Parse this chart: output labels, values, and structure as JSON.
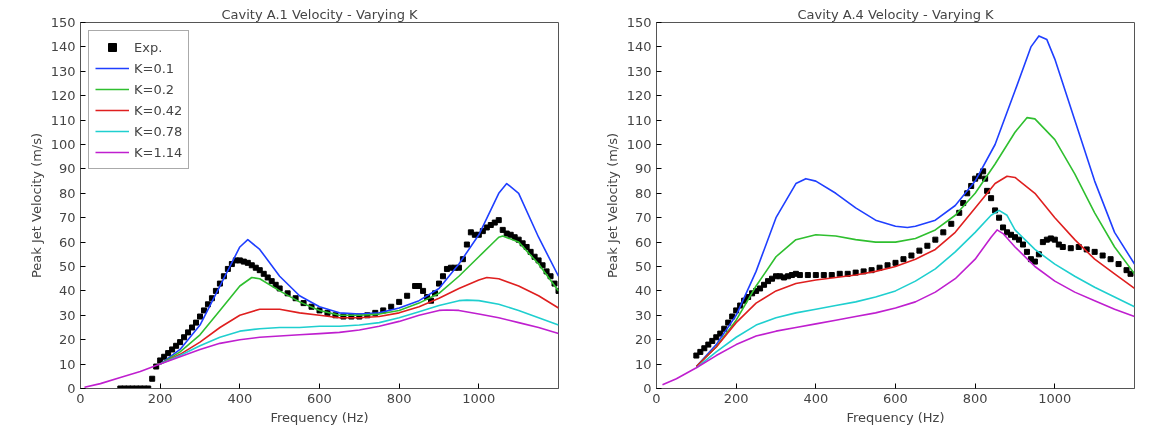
{
  "chart_data": [
    {
      "type": "line",
      "title": "Cavity A.1 Velocity - Varying K",
      "xlabel": "Frequency (Hz)",
      "ylabel": "Peak Jet Velocity (m/s)",
      "xlim": [
        0,
        1200
      ],
      "xticks": [
        0,
        200,
        400,
        600,
        800,
        1000
      ],
      "ylim": [
        0,
        150
      ],
      "yticks": [
        0,
        10,
        20,
        30,
        40,
        50,
        60,
        70,
        80,
        90,
        100,
        110,
        120,
        130,
        140,
        150
      ],
      "grid": false,
      "legend": "top left",
      "line_style": "solid",
      "series": [
        {
          "name": "Exp.",
          "type": "scatter",
          "marker": "square",
          "color": "#000000",
          "x": [
            100,
            110,
            120,
            130,
            140,
            150,
            160,
            170,
            180,
            190,
            200,
            210,
            220,
            230,
            240,
            250,
            260,
            270,
            280,
            290,
            300,
            310,
            320,
            330,
            340,
            350,
            360,
            370,
            380,
            390,
            400,
            410,
            420,
            430,
            440,
            450,
            460,
            470,
            480,
            490,
            500,
            520,
            540,
            560,
            580,
            600,
            620,
            640,
            660,
            680,
            700,
            720,
            740,
            760,
            780,
            800,
            820,
            840,
            850,
            860,
            870,
            880,
            890,
            900,
            910,
            920,
            930,
            940,
            950,
            960,
            970,
            980,
            990,
            1000,
            1010,
            1020,
            1030,
            1040,
            1050,
            1060,
            1070,
            1080,
            1090,
            1100,
            1110,
            1120,
            1130,
            1140,
            1150,
            1160,
            1170,
            1180,
            1190,
            1200
          ],
          "values": [
            0,
            0,
            0,
            0,
            0,
            0,
            0,
            0,
            4,
            9,
            11.5,
            13,
            14.5,
            16,
            17.5,
            19,
            21,
            23,
            25,
            27,
            29.5,
            32,
            34.5,
            37,
            40,
            43,
            46,
            49,
            51,
            52.5,
            52.5,
            52,
            51.5,
            50.5,
            49.5,
            48.5,
            47,
            45.5,
            44,
            42.5,
            41,
            39,
            37,
            35,
            33.5,
            32,
            31,
            30,
            29.5,
            29.5,
            29.5,
            30,
            31,
            32,
            33.5,
            35.5,
            38,
            42,
            42,
            40,
            37.5,
            36,
            39,
            43,
            46,
            49,
            49.5,
            49.5,
            49.5,
            53,
            59,
            64,
            63,
            63,
            64.5,
            66,
            67,
            68,
            69,
            65,
            63.5,
            63,
            62,
            61,
            59.5,
            58,
            56,
            54,
            52.5,
            50.5,
            48,
            46,
            43,
            40
          ]
        },
        {
          "name": "K=0.1",
          "color": "#1f3fff",
          "x": [
            200,
            250,
            300,
            350,
            400,
            420,
            450,
            500,
            550,
            600,
            650,
            700,
            750,
            800,
            850,
            900,
            950,
            1000,
            1050,
            1070,
            1100,
            1150,
            1200
          ],
          "values": [
            10,
            16,
            26,
            42,
            58,
            61,
            57,
            46,
            38,
            33.5,
            31,
            30.5,
            31,
            33,
            36,
            41,
            51,
            63,
            80,
            84,
            80,
            62,
            46
          ]
        },
        {
          "name": "K=0.2",
          "color": "#2fbf2f",
          "x": [
            200,
            250,
            300,
            350,
            400,
            430,
            450,
            500,
            550,
            600,
            650,
            700,
            750,
            800,
            850,
            900,
            950,
            1000,
            1050,
            1060,
            1100,
            1150,
            1200
          ],
          "values": [
            10,
            15,
            22,
            32,
            42,
            45.5,
            45,
            40,
            35.5,
            32,
            30,
            30,
            30.5,
            32,
            35,
            39,
            46,
            54,
            62,
            62.5,
            60,
            51,
            40
          ]
        },
        {
          "name": "K=0.42",
          "color": "#df1f1f",
          "x": [
            200,
            250,
            300,
            350,
            400,
            450,
            500,
            550,
            600,
            650,
            700,
            750,
            800,
            850,
            900,
            950,
            1000,
            1020,
            1050,
            1100,
            1150,
            1200
          ],
          "values": [
            10,
            14,
            19,
            25,
            30,
            32.5,
            32.5,
            31,
            30,
            29,
            29,
            29.5,
            31,
            33.5,
            37,
            41,
            44.5,
            45.5,
            45,
            42,
            38,
            33
          ]
        },
        {
          "name": "K=0.78",
          "color": "#1fcfcf",
          "x": [
            200,
            250,
            300,
            350,
            400,
            450,
            500,
            550,
            600,
            650,
            700,
            750,
            800,
            850,
            900,
            950,
            970,
            1000,
            1050,
            1100,
            1150,
            1200
          ],
          "values": [
            10,
            13.5,
            17.5,
            21,
            23.5,
            24.5,
            25,
            25,
            25.5,
            25.5,
            26,
            27,
            29,
            31.5,
            34,
            36,
            36.2,
            36,
            34.5,
            32,
            29,
            26
          ]
        },
        {
          "name": "K=1.14",
          "color": "#bf1fcf",
          "x": [
            10,
            50,
            100,
            150,
            200,
            250,
            300,
            350,
            400,
            450,
            500,
            550,
            600,
            650,
            700,
            750,
            800,
            850,
            900,
            920,
            950,
            1000,
            1050,
            1100,
            1150,
            1200
          ],
          "values": [
            0.5,
            2,
            4.5,
            7,
            10,
            13,
            16,
            18.5,
            20,
            21,
            21.5,
            22,
            22.5,
            23,
            24,
            25.5,
            27.5,
            30,
            32,
            32.2,
            32,
            30.5,
            29,
            27,
            25,
            22.5
          ]
        }
      ]
    },
    {
      "type": "line",
      "title": "Cavity A.4 Velocity - Varying K",
      "xlabel": "Frequency (Hz)",
      "ylabel": "Peak Jet Velocity (m/s)",
      "xlim": [
        0,
        1200
      ],
      "xticks": [
        0,
        200,
        400,
        600,
        800,
        1000
      ],
      "ylim": [
        0,
        150
      ],
      "yticks": [
        0,
        10,
        20,
        30,
        40,
        50,
        60,
        70,
        80,
        90,
        100,
        110,
        120,
        130,
        140,
        150
      ],
      "grid": false,
      "legend": false,
      "line_style": "solid",
      "series": [
        {
          "type": "scatter",
          "marker": "square",
          "color": "#000000",
          "x": [
            100,
            110,
            120,
            130,
            140,
            150,
            160,
            170,
            180,
            190,
            200,
            210,
            220,
            230,
            240,
            250,
            260,
            270,
            280,
            290,
            300,
            310,
            320,
            330,
            340,
            350,
            360,
            380,
            400,
            420,
            440,
            460,
            480,
            500,
            520,
            540,
            560,
            580,
            600,
            620,
            640,
            660,
            680,
            700,
            720,
            740,
            760,
            770,
            780,
            790,
            800,
            810,
            820,
            825,
            830,
            840,
            850,
            860,
            870,
            880,
            890,
            900,
            910,
            920,
            930,
            940,
            950,
            960,
            970,
            980,
            990,
            1000,
            1010,
            1020,
            1040,
            1060,
            1080,
            1100,
            1120,
            1140,
            1160,
            1180,
            1190
          ],
          "values": [
            13.5,
            15,
            16.5,
            18,
            19.5,
            21,
            22.5,
            24.5,
            27,
            29.5,
            32,
            34,
            36,
            37.5,
            39,
            40,
            41,
            42.5,
            44,
            45,
            46,
            46,
            45.5,
            46,
            46.5,
            47,
            46.5,
            46.5,
            46.5,
            46.5,
            46.5,
            47,
            47,
            47.5,
            48,
            48.5,
            49.5,
            50.5,
            51.5,
            53,
            54.5,
            56.5,
            58.5,
            61,
            64,
            67.5,
            72,
            76,
            80,
            83,
            86,
            87,
            89,
            86,
            81,
            78,
            73,
            70,
            66,
            64,
            63,
            62,
            61,
            59,
            56,
            53,
            52,
            55,
            60,
            61,
            61.5,
            61,
            59,
            58,
            57.5,
            58,
            57,
            56,
            54.5,
            53,
            51,
            48.5,
            47
          ]
        },
        {
          "color": "#1f3fff",
          "x": [
            100,
            150,
            200,
            250,
            300,
            350,
            375,
            400,
            450,
            500,
            550,
            600,
            630,
            650,
            700,
            750,
            800,
            850,
            900,
            940,
            960,
            980,
            1000,
            1050,
            1100,
            1150,
            1200
          ],
          "values": [
            9,
            18,
            30,
            48,
            70,
            84,
            86,
            85,
            80,
            74,
            69,
            66.5,
            66,
            66.5,
            69,
            75,
            85,
            100,
            122,
            140,
            144.5,
            143,
            135,
            110,
            85,
            64,
            51
          ]
        },
        {
          "color": "#2fbf2f",
          "x": [
            100,
            150,
            200,
            250,
            300,
            350,
            400,
            450,
            500,
            550,
            600,
            650,
            700,
            750,
            800,
            850,
            900,
            930,
            950,
            1000,
            1050,
            1100,
            1150,
            1200
          ],
          "values": [
            9,
            17,
            28,
            42,
            54,
            61,
            63,
            62.5,
            61,
            60,
            60,
            61.5,
            65,
            71,
            80,
            92,
            105,
            111,
            110.5,
            102,
            88,
            72,
            58,
            47
          ]
        },
        {
          "color": "#df1f1f",
          "x": [
            100,
            150,
            200,
            250,
            300,
            350,
            400,
            450,
            500,
            550,
            600,
            650,
            700,
            750,
            800,
            850,
            880,
            900,
            950,
            1000,
            1050,
            1100,
            1150,
            1200
          ],
          "values": [
            9,
            17,
            27,
            35,
            40,
            43,
            44.5,
            45.5,
            46.5,
            48,
            50,
            53,
            57,
            64,
            74,
            84,
            87,
            86.5,
            80,
            70,
            61,
            53,
            47,
            41
          ]
        },
        {
          "color": "#1fcfcf",
          "x": [
            100,
            150,
            200,
            250,
            300,
            350,
            400,
            450,
            500,
            550,
            600,
            650,
            700,
            750,
            800,
            840,
            860,
            880,
            900,
            950,
            1000,
            1050,
            1100,
            1150,
            1200
          ],
          "values": [
            8.5,
            15,
            21,
            26,
            29,
            31,
            32.5,
            34,
            35.5,
            37.5,
            40,
            44,
            49,
            56,
            64,
            71,
            73,
            71,
            65,
            57,
            51,
            46,
            41.5,
            37.5,
            33.5
          ]
        },
        {
          "color": "#bf1fcf",
          "x": [
            15,
            50,
            100,
            150,
            200,
            250,
            300,
            350,
            400,
            450,
            500,
            550,
            600,
            650,
            700,
            750,
            800,
            840,
            855,
            870,
            900,
            950,
            1000,
            1050,
            1100,
            1150,
            1200
          ],
          "values": [
            1.5,
            4,
            8.5,
            13.5,
            18,
            21.5,
            23.5,
            25,
            26.5,
            28,
            29.5,
            31,
            33,
            35.5,
            39.5,
            45,
            53,
            62,
            65,
            63.5,
            58,
            50,
            44,
            39.5,
            36,
            32.5,
            29.5
          ]
        }
      ]
    }
  ]
}
